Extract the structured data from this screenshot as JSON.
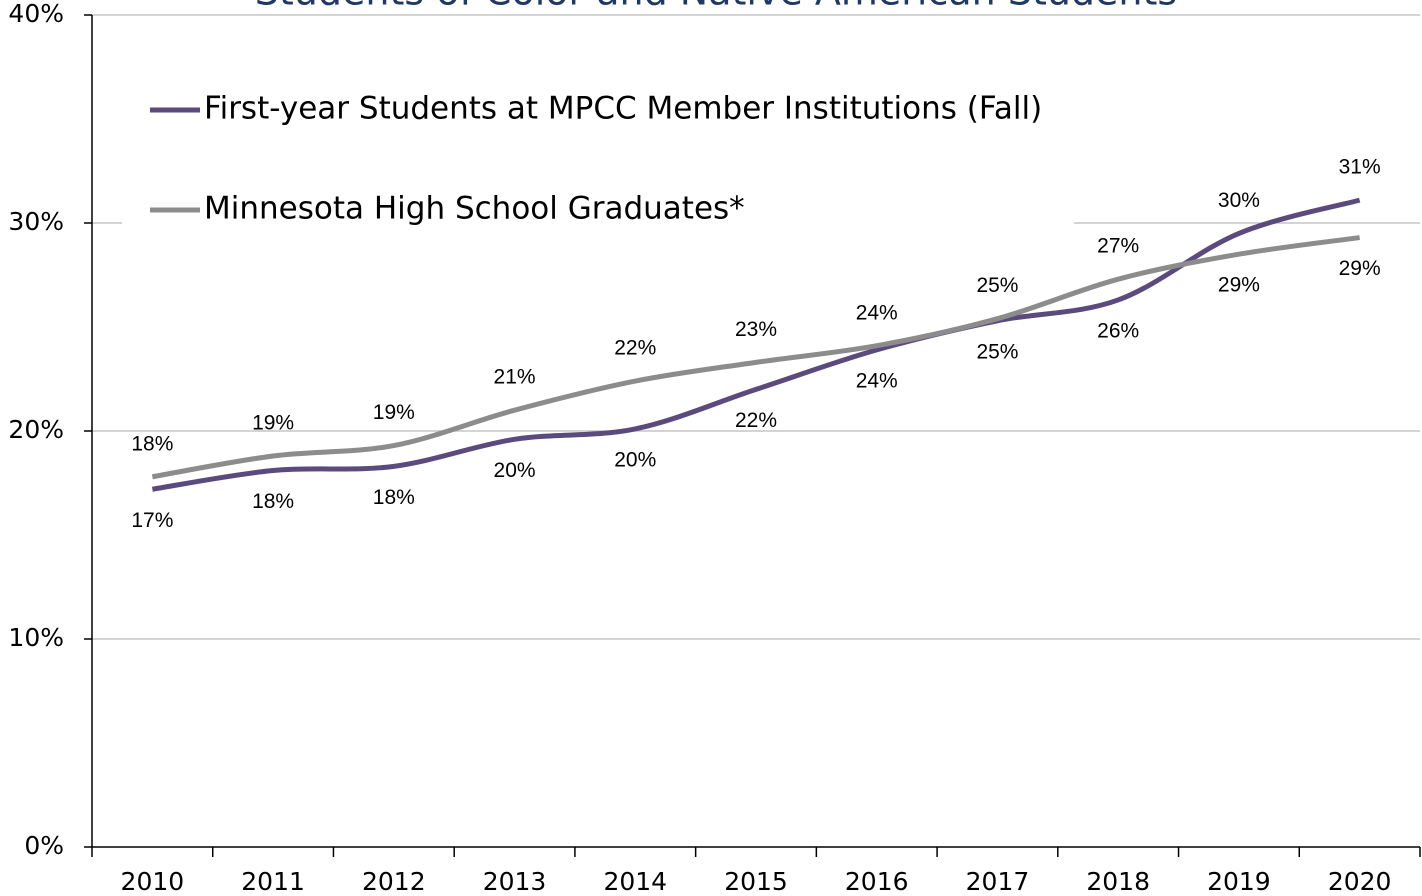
{
  "chart_data": {
    "type": "line",
    "title": "Students of Color and Native American Students",
    "categories": [
      "2010",
      "2011",
      "2012",
      "2013",
      "2014",
      "2015",
      "2016",
      "2017",
      "2018",
      "2019",
      "2020"
    ],
    "series": [
      {
        "name": "First-year Students at MPCC Member Institutions (Fall)",
        "color": "#5b4a7e",
        "values": [
          17.2,
          18.1,
          18.3,
          19.6,
          20.1,
          22.0,
          23.9,
          25.3,
          26.3,
          29.5,
          31.1
        ],
        "value_labels": [
          "17%",
          "18%",
          "18%",
          "20%",
          "20%",
          "22%",
          "24%",
          "25%",
          "26%",
          "30%",
          "31%"
        ]
      },
      {
        "name": "Minnesota High School Graduates*",
        "color": "#8c8c8c",
        "values": [
          17.8,
          18.8,
          19.3,
          21.0,
          22.4,
          23.3,
          24.1,
          25.4,
          27.3,
          28.5,
          29.3
        ],
        "value_labels": [
          "18%",
          "19%",
          "19%",
          "21%",
          "22%",
          "23%",
          "24%",
          "25%",
          "27%",
          "29%",
          "29%"
        ]
      }
    ],
    "ylim": [
      0,
      40
    ],
    "yticks": [
      {
        "value": 0,
        "label": "0%"
      },
      {
        "value": 10,
        "label": "10%"
      },
      {
        "value": 20,
        "label": "20%"
      },
      {
        "value": 30,
        "label": "30%"
      },
      {
        "value": 40,
        "label": "40%"
      }
    ],
    "grid": true,
    "legend": "top-left"
  }
}
